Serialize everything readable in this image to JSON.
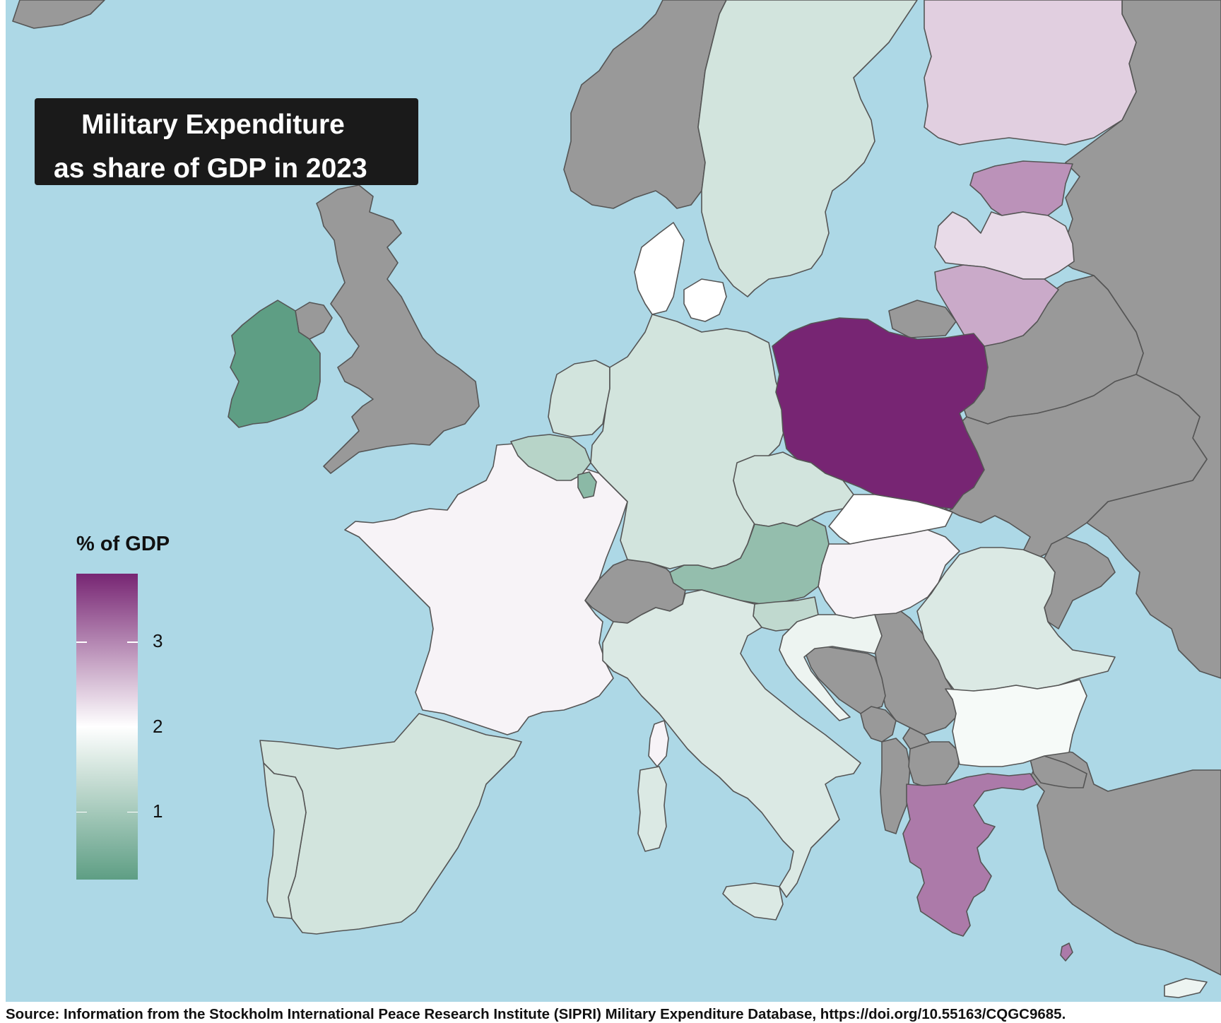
{
  "title": {
    "line1": "Military Expenditure",
    "line2": "as share of GDP in 2023"
  },
  "legend": {
    "title": "% of GDP",
    "range": [
      0.2,
      3.8
    ],
    "ticks": [
      1,
      2,
      3
    ],
    "tick_labels": [
      "1",
      "2",
      "3"
    ],
    "color_stops": [
      "#5e9e84",
      "#ffffff",
      "#772573"
    ]
  },
  "source": "Source: Information from the Stockholm International Peace Research Institute (SIPRI) Military Expenditure Database, https://doi.org/10.55163/CQGC9685.",
  "colors": {
    "sea": "#add8e6",
    "no_data": "#999999",
    "border": "#555555"
  },
  "map_data": {
    "type": "choropleth",
    "region": "Europe",
    "countries": [
      {
        "name": "Poland",
        "value": 3.8
      },
      {
        "name": "Greece",
        "value": 3.1
      },
      {
        "name": "Estonia",
        "value": 2.9
      },
      {
        "name": "Lithuania",
        "value": 2.7
      },
      {
        "name": "Finland",
        "value": 2.4
      },
      {
        "name": "Latvia",
        "value": 2.3
      },
      {
        "name": "Hungary",
        "value": 2.1
      },
      {
        "name": "France",
        "value": 2.1
      },
      {
        "name": "Slovakia",
        "value": 2.0
      },
      {
        "name": "Denmark",
        "value": 2.0
      },
      {
        "name": "Bulgaria",
        "value": 1.9
      },
      {
        "name": "Croatia",
        "value": 1.8
      },
      {
        "name": "Romania",
        "value": 1.6
      },
      {
        "name": "Italy",
        "value": 1.6
      },
      {
        "name": "Germany",
        "value": 1.5
      },
      {
        "name": "Sweden",
        "value": 1.5
      },
      {
        "name": "Czechia",
        "value": 1.5
      },
      {
        "name": "Netherlands",
        "value": 1.5
      },
      {
        "name": "Spain",
        "value": 1.5
      },
      {
        "name": "Portugal",
        "value": 1.5
      },
      {
        "name": "Cyprus",
        "value": 1.8
      },
      {
        "name": "Slovenia",
        "value": 1.3
      },
      {
        "name": "Belgium",
        "value": 1.2
      },
      {
        "name": "Austria",
        "value": 0.8
      },
      {
        "name": "Luxembourg",
        "value": 0.7
      },
      {
        "name": "Ireland",
        "value": 0.2
      },
      {
        "name": "United Kingdom",
        "value": null
      },
      {
        "name": "Norway",
        "value": null
      },
      {
        "name": "Switzerland",
        "value": null
      },
      {
        "name": "Ukraine",
        "value": null
      },
      {
        "name": "Belarus",
        "value": null
      },
      {
        "name": "Russia",
        "value": null
      },
      {
        "name": "Turkey",
        "value": null
      },
      {
        "name": "Serbia",
        "value": null
      },
      {
        "name": "Bosnia and Herzegovina",
        "value": null
      },
      {
        "name": "Albania",
        "value": null
      },
      {
        "name": "North Macedonia",
        "value": null
      },
      {
        "name": "Moldova",
        "value": null
      },
      {
        "name": "Montenegro",
        "value": null
      }
    ]
  }
}
